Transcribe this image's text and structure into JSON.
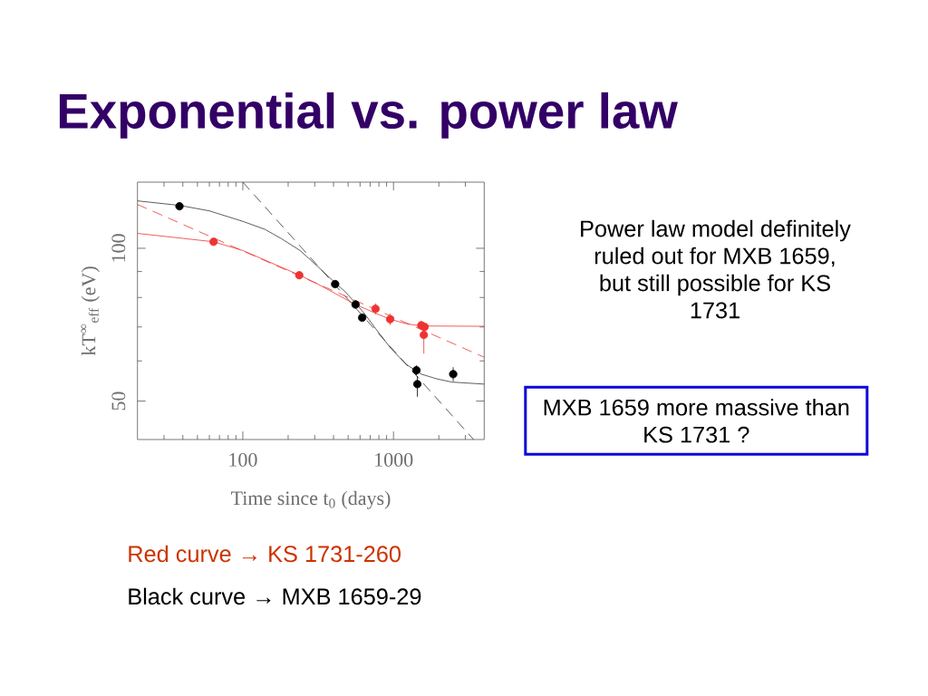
{
  "chart_data": {
    "type": "scatter",
    "title": "Exponential vs. power law",
    "xlabel": "Time since t$_{0}$ (days)",
    "ylabel": "kT$^{∞}$$_{eff}$ (eV)",
    "annotations": [
      "Power law model definitely ruled out for MXB 1659, but still possible for KS 1731",
      "MXB 1659 more massive than KS 1731 ?",
      "Red curve → KS 1731-260",
      "Black curve → MXB 1659-29"
    ],
    "log": "xy",
    "xlim": [
      20,
      4000
    ],
    "ylim": [
      42,
      135
    ],
    "xticks": [
      {
        "value": 30,
        "label": null
      },
      {
        "value": 40,
        "label": null
      },
      {
        "value": 50,
        "label": null
      },
      {
        "value": 60,
        "label": null
      },
      {
        "value": 70,
        "label": null
      },
      {
        "value": 80,
        "label": null
      },
      {
        "value": 90,
        "label": null
      },
      100,
      {
        "value": 200,
        "label": null
      },
      {
        "value": 300,
        "label": null
      },
      {
        "value": 400,
        "label": null
      },
      {
        "value": 500,
        "label": null
      },
      {
        "value": 600,
        "label": null
      },
      {
        "value": 700,
        "label": null
      },
      {
        "value": 800,
        "label": null
      },
      {
        "value": 900,
        "label": null
      },
      1000,
      {
        "value": 2000,
        "label": null
      },
      {
        "value": 3000,
        "label": null
      }
    ],
    "yticks": [
      50,
      {
        "value": 60,
        "label": null
      },
      {
        "value": 70,
        "label": null
      },
      {
        "value": 80,
        "label": null
      },
      {
        "value": 90,
        "label": null
      },
      100
    ],
    "series": [
      {
        "type": "line",
        "color": "#333333",
        "line_style": "solid",
        "x": [
          20,
          38,
          60,
          100,
          140,
          180,
          240,
          315,
          410,
          480,
          560,
          650,
          760,
          960,
          1220,
          1530,
          1940,
          2440,
          4000
        ],
        "values": [
          124,
          121.5,
          118.5,
          113,
          109,
          104.5,
          99,
          92,
          85.5,
          82,
          78,
          74,
          69.5,
          63.5,
          59,
          56.5,
          55.3,
          54.5,
          54
        ]
      },
      {
        "type": "line",
        "color": "#333333",
        "line_style": "dashed",
        "x": [
          100,
          3400
        ],
        "values": [
          135,
          42
        ]
      },
      {
        "type": "line",
        "color": "#ee3333",
        "line_style": "solid",
        "x": [
          20,
          64,
          100,
          239,
          315,
          560,
          760,
          950,
          1220,
          1530,
          4000
        ],
        "values": [
          107,
          103,
          99,
          88.5,
          85,
          77.5,
          74.5,
          72.5,
          71,
          70.3,
          70.2
        ]
      },
      {
        "type": "line",
        "color": "#ee3333",
        "line_style": "dashed",
        "x": [
          20,
          4000
        ],
        "values": [
          122,
          61
        ]
      },
      {
        "color": "#000000",
        "marker": "circle",
        "x": [
          38,
          410,
          560,
          620,
          1420,
          1440,
          2490
        ],
        "values": [
          121,
          85,
          77.5,
          73,
          57.5,
          54,
          56.5
        ],
        "errors": [
          null,
          null,
          null,
          null,
          1.3,
          [
            51,
            56
          ],
          1.8
        ]
      },
      {
        "color": "#ee3333",
        "marker": "circle",
        "x": [
          64,
          237,
          760,
          950,
          1530,
          1610,
          1590
        ],
        "values": [
          103,
          88.5,
          76,
          72.5,
          70.5,
          70,
          67.5
        ],
        "errors": [
          1.2,
          1.2,
          1.9,
          1.9,
          1.5,
          null,
          [
            62,
            71.5
          ]
        ]
      }
    ]
  }
}
